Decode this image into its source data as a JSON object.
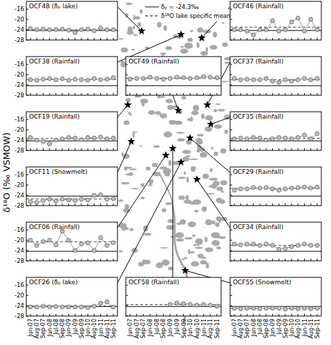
{
  "y_label": "δ¹⁸O (‰ VSMOW)",
  "delta_p": -24.3,
  "legend_items": [
    {
      "label": "δₚ = -24.3‰",
      "line_style": "solid"
    },
    {
      "label": "δ¹⁸O lake specific mean",
      "line_style": "dashed"
    }
  ],
  "chart_data": [
    {
      "type": "line",
      "title": "OCF48 (δₚ lake)",
      "marker": "circle",
      "color": "#bdbdbd",
      "tick_labels": "y",
      "categories": [
        "Jun-07",
        "Aug-07",
        "Sep-07",
        "Jun-08",
        "Jul-08",
        "Sep-08",
        "Jun-09",
        "Jul-09",
        "Sep-09",
        "Jun-10",
        "Aug-10",
        "Jun-11",
        "Aug-11",
        "Sep-11"
      ],
      "values": [
        -23.6,
        -24.0,
        -23.8,
        -24.0,
        -23.9,
        -23.8,
        -24.2,
        -25.2,
        -24.0,
        -23.8,
        -24.4,
        -23.3,
        -24.0,
        -24.0
      ],
      "lake_mean": -24.0,
      "ylim": [
        -28,
        -13
      ],
      "yticks": [
        -28,
        -24,
        -20,
        -16
      ]
    },
    {
      "type": "line",
      "title": "OCF38 (Rainfall)",
      "marker": "circle",
      "color": "#bdbdbd",
      "tick_labels": "y",
      "categories": [
        "Jun-07",
        "Aug-07",
        "Sep-07",
        "Jun-08",
        "Jul-08",
        "Sep-08",
        "Jun-09",
        "Jul-09",
        "Sep-09",
        "Jun-10",
        "Aug-10",
        "Jun-11",
        "Aug-11",
        "Sep-11"
      ],
      "values": [
        -22.0,
        -22.2,
        -21.8,
        -21.5,
        -22.0,
        -21.6,
        -22.2,
        -21.8,
        -22.0,
        -22.2,
        -21.5,
        -22.0,
        -21.8,
        -21.2
      ],
      "lake_mean": -21.9,
      "ylim": [
        -28,
        -13
      ],
      "yticks": [
        -28,
        -24,
        -20,
        -16
      ]
    },
    {
      "type": "line",
      "title": "OCF19 (Rainfall)",
      "marker": "circle",
      "color": "#bdbdbd",
      "tick_labels": "y",
      "categories": [
        "Jun-07",
        "Aug-07",
        "Sep-07",
        "Jun-08",
        "Jul-08",
        "Sep-08",
        "Jun-09",
        "Jul-09",
        "Sep-09",
        "Jun-10",
        "Aug-10",
        "Jun-11",
        "Aug-11",
        "Sep-11"
      ],
      "values": [
        -23.0,
        -24.0,
        -24.5,
        -25.5,
        -24.0,
        -23.5,
        -23.0,
        -23.2,
        -23.8,
        -23.0,
        -23.2,
        -22.8,
        -23.5,
        -23.2
      ],
      "lake_mean": -23.4,
      "ylim": [
        -28,
        -13
      ],
      "yticks": [
        -28,
        -24,
        -20,
        -16
      ]
    },
    {
      "type": "line",
      "title": "OCF11 (Snowmelt)",
      "marker": "circle",
      "color": "#bdbdbd",
      "tick_labels": "y",
      "categories": [
        "Jun-07",
        "Aug-07",
        "Sep-07",
        "Jun-08",
        "Jul-08",
        "Sep-08",
        "Jun-09",
        "Jul-09",
        "Sep-09",
        "Jun-10",
        "Aug-10",
        "Jun-11",
        "Aug-11",
        "Sep-11"
      ],
      "values": [
        -26.5,
        -26.8,
        -26.0,
        -25.5,
        -26.2,
        -25.5,
        -25.8,
        -26.0,
        -25.5,
        -25.8,
        -24.0,
        -23.8,
        -25.5,
        -25.3
      ],
      "lake_mean": -25.4,
      "ylim": [
        -28,
        -13
      ],
      "yticks": [
        -28,
        -24,
        -20,
        -16
      ]
    },
    {
      "type": "line",
      "title": "OCF06 (Rainfall)",
      "marker": "circle",
      "color": "#bdbdbd",
      "tick_labels": "y",
      "categories": [
        "Jun-07",
        "Aug-07",
        "Sep-07",
        "Jun-08",
        "Jul-08",
        "Sep-08",
        "Jun-09",
        "Jul-09",
        "Sep-09",
        "Jun-10",
        "Aug-10",
        "Jun-11",
        "Aug-11",
        "Sep-11"
      ],
      "values": [
        -20.0,
        -22.0,
        -20.5,
        -20.0,
        -21.8,
        -16.5,
        -20.0,
        -24.0,
        -21.5,
        -21.0,
        -24.0,
        -19.0,
        -22.0,
        -21.0
      ],
      "lake_mean": -20.6,
      "ylim": [
        -28,
        -13
      ],
      "yticks": [
        -28,
        -24,
        -20,
        -16
      ]
    },
    {
      "type": "line",
      "title": "OCF26 (δₚ lake)",
      "marker": "circle",
      "color": "#bdbdbd",
      "categories": [
        "Jun-07",
        "Aug-07",
        "Sep-07",
        "Jun-08",
        "Jul-08",
        "Sep-08",
        "Jun-09",
        "Jul-09",
        "Sep-09",
        "Jun-10",
        "Aug-10",
        "Jun-11",
        "Aug-11",
        "Sep-11"
      ],
      "values": [
        -24.5,
        -24.5,
        -24.2,
        -24.5,
        -24.3,
        -24.5,
        -24.5,
        -24.5,
        -24.5,
        -24.7,
        -24.2,
        -23.0,
        -22.5,
        -24.5
      ],
      "lake_mean": -24.1,
      "ylim": [
        -28,
        -13
      ],
      "yticks": [
        -28,
        -24,
        -20,
        -16
      ]
    },
    {
      "type": "line",
      "title": "OCF46 (Rainfall)",
      "marker": "circle",
      "color": "#bdbdbd",
      "tick_labels": false,
      "categories": [
        "Jun-07",
        "Aug-07",
        "Sep-07",
        "Jun-08",
        "Jul-08",
        "Sep-08",
        "Jun-09",
        "Jul-09",
        "Sep-09",
        "Jun-10",
        "Aug-10",
        "Jun-11",
        "Aug-11",
        "Sep-11"
      ],
      "values": [
        -24.0,
        -24.0,
        -24.5,
        -26.0,
        -24.0,
        -24.0,
        -20.5,
        -24.5,
        -24.0,
        -21.0,
        -19.5,
        -24.5,
        -20.0,
        -24.0
      ],
      "lake_mean": -23.0,
      "ylim": [
        -28,
        -13
      ],
      "yticks": [
        -28,
        -24,
        -20,
        -16
      ]
    },
    {
      "type": "line",
      "title": "OCF37 (Rainfall)",
      "marker": "circle",
      "color": "#bdbdbd",
      "tick_labels": false,
      "categories": [
        "Jun-07",
        "Aug-07",
        "Sep-07",
        "Jun-08",
        "Jul-08",
        "Sep-08",
        "Jun-09",
        "Jul-09",
        "Sep-09",
        "Jun-10",
        "Aug-10",
        "Jun-11",
        "Aug-11",
        "Sep-11"
      ],
      "values": [
        -21.5,
        -22.0,
        -21.8,
        -22.0,
        -22.0,
        -21.5,
        -22.5,
        -23.0,
        -22.0,
        -22.5,
        -22.0,
        -21.5,
        -22.0,
        -21.5
      ],
      "lake_mean": -22.0,
      "ylim": [
        -28,
        -13
      ],
      "yticks": [
        -28,
        -24,
        -20,
        -16
      ]
    },
    {
      "type": "line",
      "title": "OCF35 (Rainfall)",
      "marker": "circle",
      "color": "#bdbdbd",
      "tick_labels": false,
      "categories": [
        "Jun-07",
        "Aug-07",
        "Sep-07",
        "Jun-08",
        "Jul-08",
        "Sep-08",
        "Jun-09",
        "Jul-09",
        "Sep-09",
        "Jun-10",
        "Aug-10",
        "Jun-11",
        "Aug-11",
        "Sep-11"
      ],
      "values": [
        -23.5,
        -23.2,
        -23.5,
        -23.0,
        -23.2,
        -24.0,
        -23.5,
        -23.0,
        -23.2,
        -23.5,
        -23.0,
        -22.0,
        -23.5,
        -21.5
      ],
      "lake_mean": -23.3,
      "ylim": [
        -28,
        -13
      ],
      "yticks": [
        -28,
        -24,
        -20,
        -16
      ]
    },
    {
      "type": "line",
      "title": "OCF29 (Rainfall)",
      "marker": "circle",
      "color": "#bdbdbd",
      "tick_labels": false,
      "categories": [
        "Jun-07",
        "Aug-07",
        "Sep-07",
        "Jun-08",
        "Jul-08",
        "Sep-08",
        "Jun-09",
        "Jul-09",
        "Sep-09",
        "Jun-10",
        "Aug-10",
        "Jun-11",
        "Aug-11",
        "Sep-11"
      ],
      "values": [
        -22.0,
        -21.5,
        -21.5,
        -21.0,
        -21.2,
        -21.0,
        -21.5,
        -22.0,
        -21.5,
        -21.2,
        -21.0,
        -20.8,
        -21.2,
        -20.8
      ],
      "lake_mean": -21.3,
      "ylim": [
        -28,
        -13
      ],
      "yticks": [
        -28,
        -24,
        -20,
        -16
      ]
    },
    {
      "type": "line",
      "title": "OCF34 (Rainfall)",
      "marker": "circle",
      "color": "#bdbdbd",
      "tick_labels": false,
      "categories": [
        "Jun-07",
        "Aug-07",
        "Sep-07",
        "Jun-08",
        "Jul-08",
        "Sep-08",
        "Jun-09",
        "Jul-09",
        "Sep-09",
        "Jun-10",
        "Aug-10",
        "Jun-11",
        "Aug-11",
        "Sep-11"
      ],
      "values": [
        -21.5,
        -21.8,
        -21.5,
        -21.5,
        -22.0,
        -21.5,
        -22.0,
        -23.5,
        -23.2,
        -22.5,
        -22.0,
        -21.5,
        -22.0,
        -22.0
      ],
      "lake_mean": -22.0,
      "ylim": [
        -28,
        -13
      ],
      "yticks": [
        -28,
        -24,
        -20,
        -16
      ]
    },
    {
      "type": "line",
      "title": "OCF55 (Snowmelt)",
      "marker": "circle",
      "color": "#bdbdbd",
      "tick_labels": "x",
      "categories": [
        "Jun-07",
        "Aug-07",
        "Sep-07",
        "Jun-08",
        "Jul-08",
        "Sep-08",
        "Jun-09",
        "Jul-09",
        "Sep-09",
        "Jun-10",
        "Aug-10",
        "Jun-11",
        "Aug-11",
        "Sep-11"
      ],
      "values": [
        -25.0,
        -25.2,
        -25.0,
        -25.0,
        -25.2,
        -25.0,
        -25.0,
        -25.0,
        -25.3,
        -25.0,
        -25.2,
        -25.0,
        -25.2,
        -25.0
      ],
      "lake_mean": -25.1,
      "ylim": [
        -28,
        -13
      ],
      "yticks": [
        -28,
        -24,
        -20,
        -16
      ]
    },
    {
      "type": "line",
      "title": "OCF49 (Rainfall)",
      "marker": "circle",
      "color": "#bdbdbd",
      "tick_labels": false,
      "categories": [
        "Jun-07",
        "Aug-07",
        "Sep-07",
        "Jun-08",
        "Jul-08",
        "Sep-08",
        "Jun-09",
        "Jul-09",
        "Sep-09",
        "Jun-10",
        "Aug-10",
        "Jun-11",
        "Aug-11",
        "Sep-11"
      ],
      "values": [
        -21.8,
        -21.5,
        -21.5,
        -21.0,
        -21.5,
        -21.8,
        -21.5,
        -21.0,
        -21.2,
        -21.5,
        -21.2,
        -20.8,
        -21.0,
        -21.2
      ],
      "lake_mean": -21.4,
      "ylim": [
        -28,
        -13
      ],
      "yticks": [
        -28,
        -24,
        -20,
        -16
      ]
    },
    {
      "type": "line",
      "title": "OCF58 (Rainfall)",
      "marker": "circle",
      "color": "#bdbdbd",
      "tick_labels": "x",
      "categories": [
        "Jun-07",
        "Aug-07",
        "Sep-07",
        "Jun-08",
        "Jul-08",
        "Sep-08",
        "Jun-09",
        "Jul-09",
        "Sep-09",
        "Jun-10",
        "Aug-10",
        "Jun-11",
        "Aug-11",
        "Sep-11"
      ],
      "values": [
        null,
        null,
        null,
        null,
        null,
        null,
        -23.5,
        -23.0,
        -23.2,
        -23.5,
        -23.8,
        -23.5,
        -23.8,
        -24.2
      ],
      "lake_mean": -23.6,
      "ylim": [
        -28,
        -13
      ],
      "yticks": [
        -28,
        -24,
        -20,
        -16
      ]
    }
  ]
}
